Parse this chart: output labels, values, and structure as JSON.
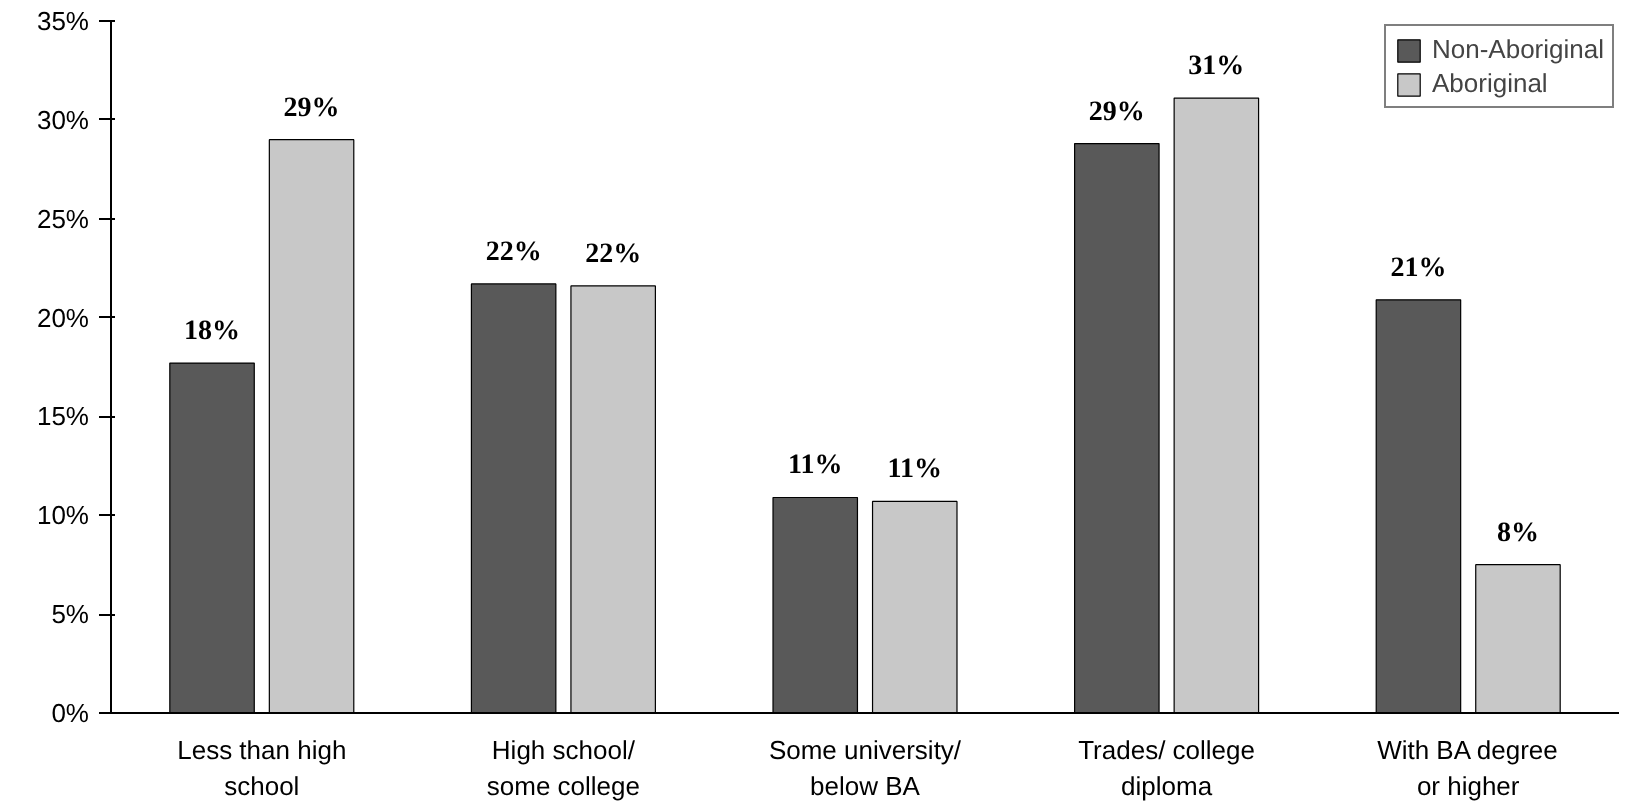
{
  "chart_data": {
    "type": "bar",
    "categories": [
      "Less than high school",
      "High school/ some college",
      "Some university/ below BA",
      "Trades/ college diploma",
      "With BA degree or higher"
    ],
    "series": [
      {
        "name": "Non-Aboriginal",
        "color": "#595959",
        "values": [
          17.7,
          21.7,
          10.9,
          28.8,
          20.9
        ],
        "value_labels": [
          "18%",
          "22%",
          "11%",
          "29%",
          "21%"
        ]
      },
      {
        "name": "Aboriginal",
        "color": "#c8c8c8",
        "values": [
          29.0,
          21.6,
          10.7,
          31.1,
          7.5
        ],
        "value_labels": [
          "29%",
          "22%",
          "11%",
          "31%",
          "8%"
        ]
      }
    ],
    "ylim": [
      0,
      35
    ],
    "yticks": [
      {
        "value": 0,
        "label": "0%"
      },
      {
        "value": 5,
        "label": "5%"
      },
      {
        "value": 10,
        "label": "10%"
      },
      {
        "value": 15,
        "label": "15%"
      },
      {
        "value": 20,
        "label": "20%"
      },
      {
        "value": 25,
        "label": "25%"
      },
      {
        "value": 30,
        "label": "30%"
      },
      {
        "value": 35,
        "label": "35%"
      }
    ],
    "grid": false,
    "legend": "top right"
  }
}
